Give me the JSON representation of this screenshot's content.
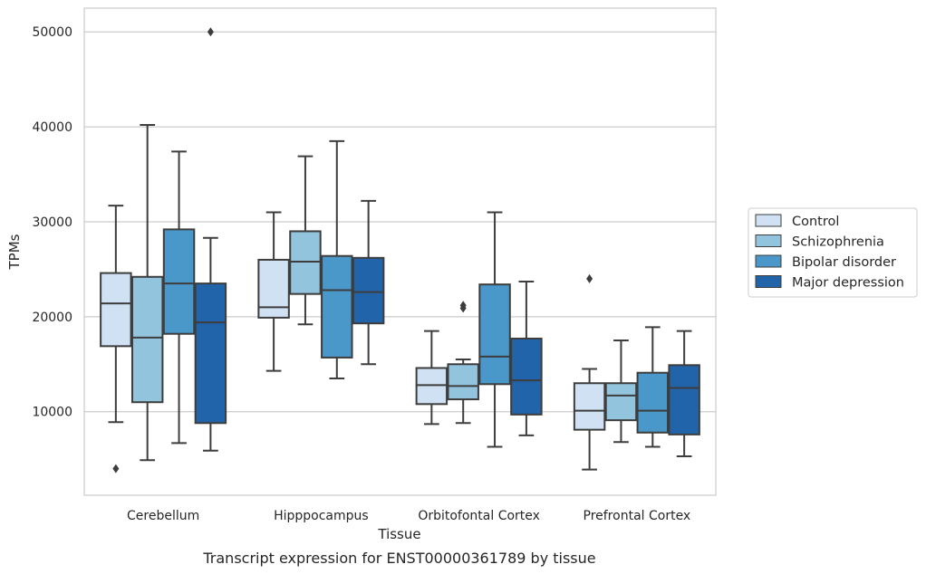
{
  "chart_data": {
    "type": "box",
    "xlabel": "Tissue",
    "ylabel": "TPMs",
    "caption": "Transcript expression for ENST00000361789 by tissue",
    "ylim": [
      1200,
      52500
    ],
    "yticks": [
      10000,
      20000,
      30000,
      40000,
      50000
    ],
    "ytick_labels": [
      "10000",
      "20000",
      "30000",
      "40000",
      "50000"
    ],
    "grid": "horizontal",
    "legend_position": "right",
    "categories": [
      "Cerebellum",
      "Hipppocampus",
      "Orbitofontal Cortex",
      "Prefrontal Cortex"
    ],
    "series": [
      {
        "name": "Control",
        "color": "#cfe1f2",
        "boxes": [
          {
            "whislo": 8900,
            "q1": 16900,
            "med": 21400,
            "q3": 24600,
            "whishi": 31700,
            "fliers": [
              4000
            ]
          },
          {
            "whislo": 14300,
            "q1": 19900,
            "med": 21000,
            "q3": 26000,
            "whishi": 31000,
            "fliers": []
          },
          {
            "whislo": 8700,
            "q1": 10800,
            "med": 12800,
            "q3": 14600,
            "whishi": 18500,
            "fliers": []
          },
          {
            "whislo": 3900,
            "q1": 8100,
            "med": 10100,
            "q3": 13000,
            "whishi": 14500,
            "fliers": [
              24000
            ]
          }
        ]
      },
      {
        "name": "Schizophrenia",
        "color": "#93c4de",
        "boxes": [
          {
            "whislo": 4900,
            "q1": 11000,
            "med": 17800,
            "q3": 24200,
            "whishi": 40200,
            "fliers": []
          },
          {
            "whislo": 19200,
            "q1": 22400,
            "med": 25800,
            "q3": 29000,
            "whishi": 36900,
            "fliers": []
          },
          {
            "whislo": 8800,
            "q1": 11300,
            "med": 12700,
            "q3": 15000,
            "whishi": 15500,
            "fliers": [
              20900,
              21200
            ]
          },
          {
            "whislo": 6800,
            "q1": 9100,
            "med": 11700,
            "q3": 13000,
            "whishi": 17500,
            "fliers": []
          }
        ]
      },
      {
        "name": "Bipolar disorder",
        "color": "#4a98c9",
        "boxes": [
          {
            "whislo": 6700,
            "q1": 18200,
            "med": 23500,
            "q3": 29200,
            "whishi": 37400,
            "fliers": []
          },
          {
            "whislo": 13500,
            "q1": 15700,
            "med": 22800,
            "q3": 26400,
            "whishi": 38500,
            "fliers": []
          },
          {
            "whislo": 6300,
            "q1": 12900,
            "med": 15800,
            "q3": 23400,
            "whishi": 31000,
            "fliers": []
          },
          {
            "whislo": 6300,
            "q1": 7800,
            "med": 10100,
            "q3": 14100,
            "whishi": 18900,
            "fliers": []
          }
        ]
      },
      {
        "name": "Major depression",
        "color": "#2164aa",
        "boxes": [
          {
            "whislo": 5900,
            "q1": 8800,
            "med": 19400,
            "q3": 23500,
            "whishi": 28300,
            "fliers": [
              50000
            ]
          },
          {
            "whislo": 15000,
            "q1": 19300,
            "med": 22600,
            "q3": 26200,
            "whishi": 32200,
            "fliers": []
          },
          {
            "whislo": 7500,
            "q1": 9700,
            "med": 13300,
            "q3": 17700,
            "whishi": 23700,
            "fliers": []
          },
          {
            "whislo": 5300,
            "q1": 7600,
            "med": 12500,
            "q3": 14900,
            "whishi": 18500,
            "fliers": []
          }
        ]
      }
    ]
  }
}
